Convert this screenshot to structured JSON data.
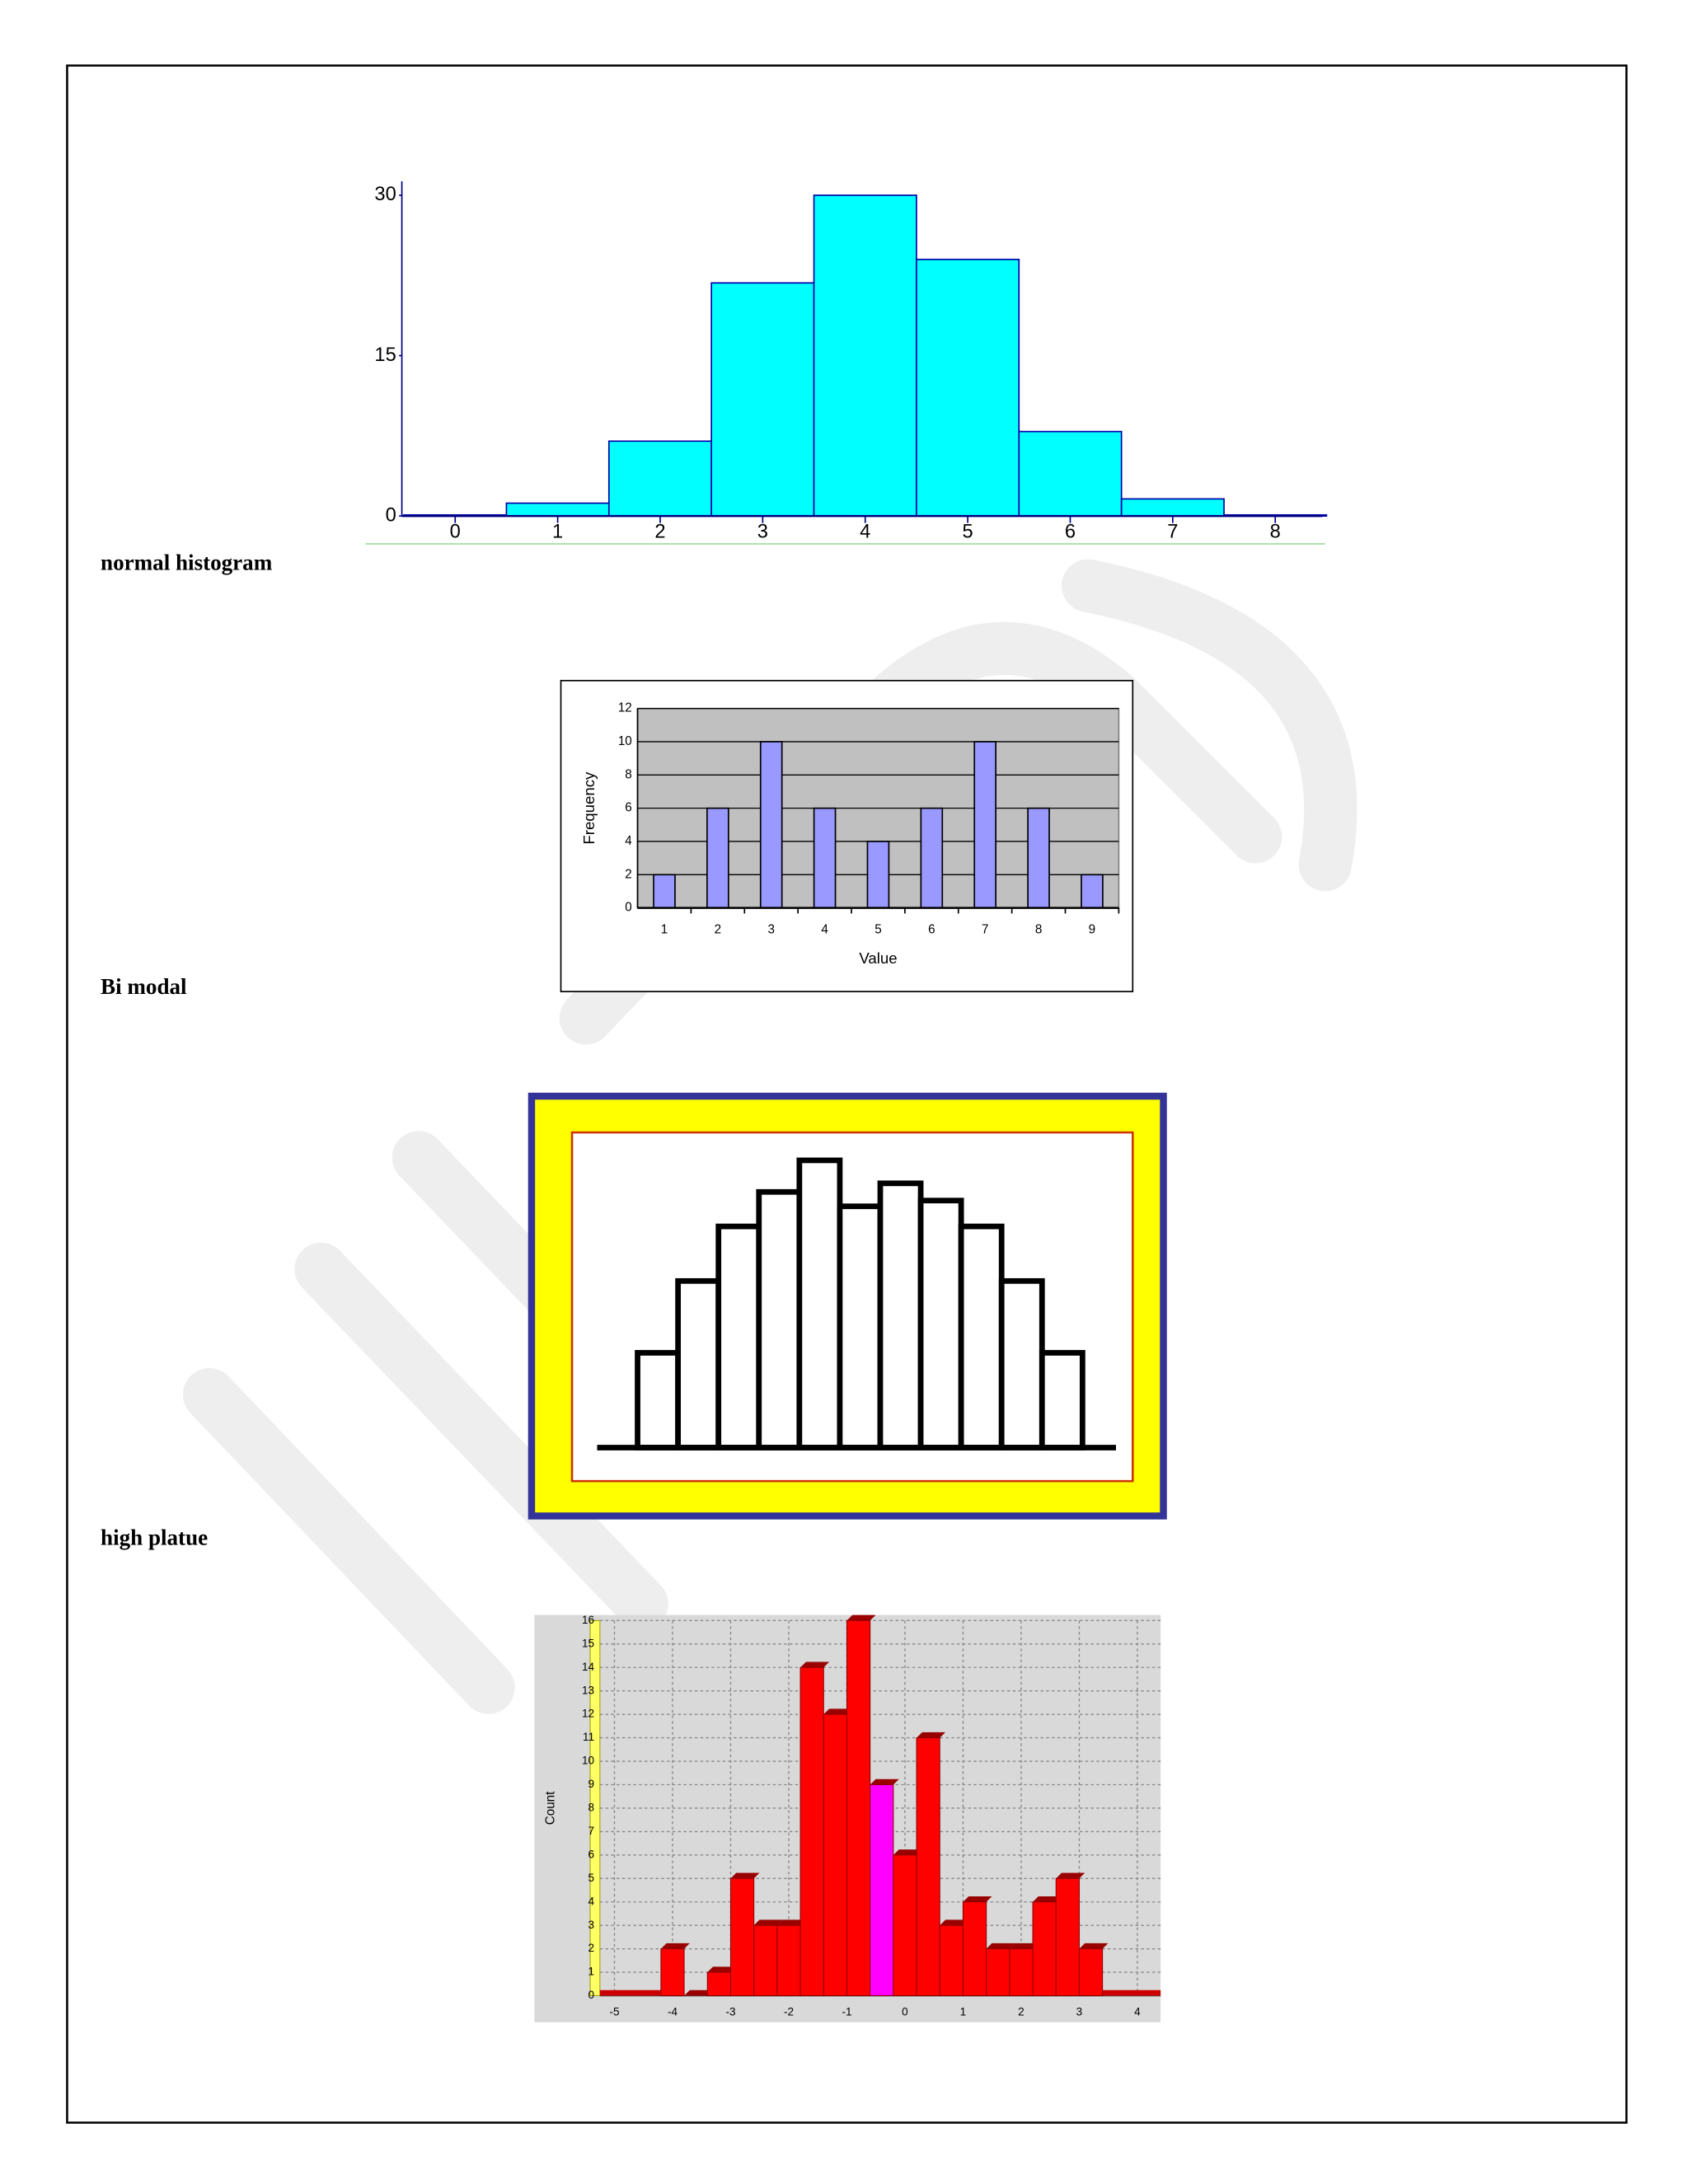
{
  "captions": [
    "normal histogram",
    "Bi modal",
    "high platue"
  ],
  "chart_data": [
    {
      "type": "bar",
      "x": [
        0,
        1,
        2,
        3,
        4,
        5,
        6,
        7,
        8
      ],
      "values": [
        0.1,
        1.2,
        7,
        21.8,
        30,
        24,
        7.9,
        1.6,
        0.1
      ],
      "color": "#00ffff",
      "edge_color": "#0000aa",
      "xlim": [
        -0.52,
        8.46
      ],
      "xticks": [
        0,
        1,
        2,
        3,
        4,
        5,
        6,
        7,
        8
      ],
      "ylim": [
        0,
        30
      ],
      "yticks": [
        0,
        15,
        30
      ]
    },
    {
      "type": "bar",
      "categories": [
        "1",
        "2",
        "3",
        "4",
        "5",
        "6",
        "7",
        "8",
        "9"
      ],
      "values": [
        2,
        6,
        10,
        6,
        4,
        6,
        10,
        6,
        2
      ],
      "color": "#9999ff",
      "ylim": [
        0,
        12
      ],
      "yticks": [
        0,
        2,
        4,
        6,
        8,
        10,
        12
      ],
      "grid": true,
      "xlabel": "Value",
      "ylabel": "Frequency"
    },
    {
      "type": "bar",
      "values": [
        3.3,
        5.8,
        7.7,
        8.9,
        10,
        8.4,
        9.2,
        8.6,
        7.7,
        5.8,
        3.3
      ],
      "color": "#ffffff",
      "edge_color": "#000000"
    },
    {
      "type": "histogram",
      "bins": [
        -4.2,
        -3.8,
        -3.4,
        -3.0,
        -2.6,
        -2.2,
        -1.8,
        -1.4,
        -1.0,
        -0.6,
        -0.2,
        0.2,
        0.6,
        1.0,
        1.4,
        1.8,
        2.2,
        2.6,
        3.0,
        3.4
      ],
      "values": [
        2,
        0,
        1,
        5,
        3,
        3,
        14,
        12,
        16,
        9,
        6,
        11,
        3,
        4,
        2,
        2,
        4,
        5,
        2
      ],
      "colors": [
        "#ff0000",
        "#ff0000",
        "#ff0000",
        "#ff0000",
        "#ff0000",
        "#ff0000",
        "#ff0000",
        "#ff0000",
        "#ff0000",
        "#ff00ff",
        "#ff0000",
        "#ff0000",
        "#ff0000",
        "#ff0000",
        "#ff0000",
        "#ff0000",
        "#ff0000",
        "#ff0000",
        "#ff0000"
      ],
      "xlim": [
        -5.25,
        4.4
      ],
      "xticks": [
        -5,
        -4,
        -3,
        -2,
        -1,
        0,
        1,
        2,
        3,
        4
      ],
      "ylim": [
        0,
        16
      ],
      "yticks": [
        0,
        1,
        2,
        3,
        4,
        5,
        6,
        7,
        8,
        9,
        10,
        11,
        12,
        13,
        14,
        15,
        16
      ],
      "grid": true,
      "ylabel": "Count"
    }
  ]
}
